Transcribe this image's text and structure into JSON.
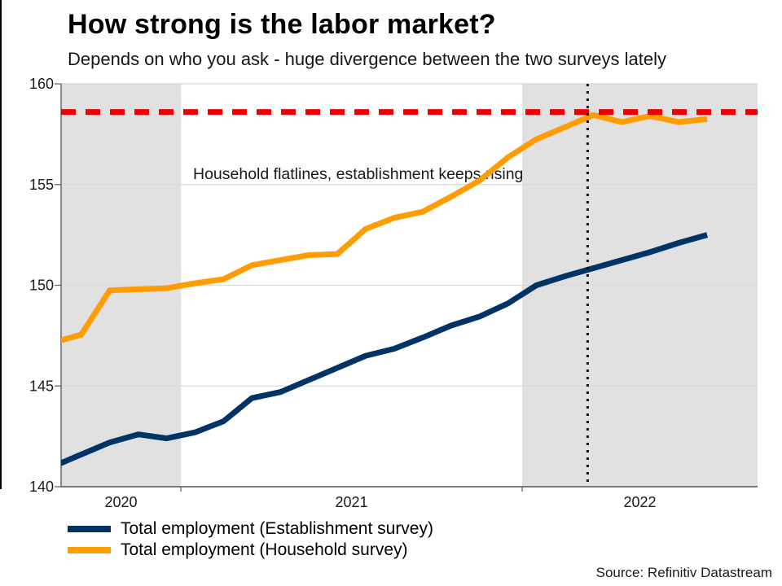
{
  "title": "How strong is the labor market?",
  "subtitle": "Depends on who you ask - huge divergence between the two surveys lately",
  "annotation": "Household flatlines, establishment keeps rising",
  "source": "Source: Refinitiv Datastream",
  "legend": [
    {
      "label": "Total employment (Establishment survey)",
      "color": "#003366"
    },
    {
      "label": "Total employment (Household survey)",
      "color": "#ff9c00"
    }
  ],
  "chart_data": {
    "type": "line",
    "x": [
      "2020-08",
      "2020-09",
      "2020-10",
      "2020-11",
      "2020-12",
      "2021-01",
      "2021-02",
      "2021-03",
      "2021-04",
      "2021-05",
      "2021-06",
      "2021-07",
      "2021-08",
      "2021-09",
      "2021-10",
      "2021-11",
      "2021-12",
      "2022-01",
      "2022-02",
      "2022-03",
      "2022-04",
      "2022-05",
      "2022-06",
      "2022-07"
    ],
    "x_tick_labels": [
      "2020",
      "2021",
      "2022"
    ],
    "shaded_years": [
      "2020",
      "2022"
    ],
    "ylim": [
      140,
      160
    ],
    "yticks": [
      140,
      145,
      150,
      155,
      160
    ],
    "grid": true,
    "series": [
      {
        "name": "Total employment (Establishment survey)",
        "color": "#003366",
        "values": [
          141.0,
          141.6,
          142.2,
          142.6,
          142.4,
          142.7,
          143.25,
          144.4,
          144.7,
          145.3,
          145.9,
          146.5,
          146.85,
          147.4,
          148.0,
          148.45,
          149.1,
          150.0,
          150.45,
          150.85,
          151.25,
          151.65,
          152.1,
          152.5
        ]
      },
      {
        "name": "Total employment (Household survey)",
        "color": "#ff9c00",
        "values": [
          147.15,
          147.55,
          149.75,
          149.8,
          149.85,
          150.1,
          150.3,
          151.0,
          151.25,
          151.5,
          151.55,
          152.8,
          153.35,
          153.65,
          154.4,
          155.2,
          156.35,
          157.25,
          157.85,
          158.45,
          158.1,
          158.4,
          158.1,
          158.25
        ]
      }
    ],
    "reference_line": {
      "value": 158.6,
      "color": "#ec0000",
      "style": "dashed"
    },
    "event_line": {
      "x": "2022-03",
      "color": "#111111",
      "style": "dotted"
    }
  }
}
